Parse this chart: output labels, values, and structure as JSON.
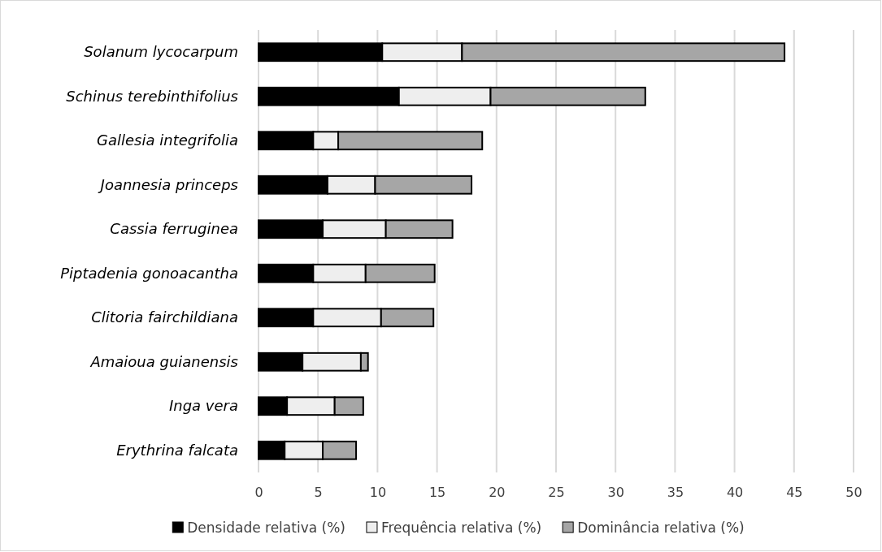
{
  "chart_data": {
    "type": "bar",
    "orientation": "horizontal",
    "stacked": true,
    "categories": [
      "Solanum lycocarpum",
      "Schinus terebinthifolius",
      "Gallesia integrifolia",
      "Joannesia princeps",
      "Cassia ferruginea",
      "Piptadenia gonoacantha",
      "Clitoria fairchildiana",
      "Amaioua guianensis",
      "Inga vera",
      "Erythrina falcata"
    ],
    "series": [
      {
        "name": "Densidade relativa (%)",
        "color": "#000000",
        "values": [
          10.4,
          11.8,
          4.6,
          5.8,
          5.4,
          4.6,
          4.6,
          3.7,
          2.4,
          2.2
        ]
      },
      {
        "name": "Frequência relativa (%)",
        "color": "#eeeeee",
        "values": [
          6.7,
          7.7,
          2.1,
          4.0,
          5.3,
          4.4,
          5.7,
          4.9,
          4.0,
          3.2
        ]
      },
      {
        "name": "Dominância relativa (%)",
        "color": "#a6a6a6",
        "values": [
          27.1,
          13.0,
          12.1,
          8.1,
          5.6,
          5.8,
          4.4,
          0.6,
          2.4,
          2.8
        ]
      }
    ],
    "xlim": [
      0,
      50
    ],
    "xticks": [
      0,
      5,
      10,
      15,
      20,
      25,
      30,
      35,
      40,
      45,
      50
    ],
    "grid": "x",
    "legend": "bottom"
  }
}
